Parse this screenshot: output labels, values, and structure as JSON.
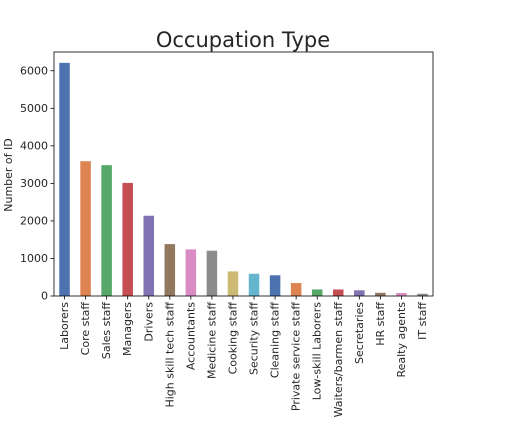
{
  "chart_data": {
    "type": "bar",
    "title": "Occupation Type",
    "xlabel": "",
    "ylabel": "Number of ID",
    "ylim": [
      0,
      6500
    ],
    "yticks": [
      0,
      1000,
      2000,
      3000,
      4000,
      5000,
      6000
    ],
    "grid": false,
    "legend": "none",
    "categories": [
      "Laborers",
      "Core staff",
      "Sales staff",
      "Managers",
      "Drivers",
      "High skill tech staff",
      "Accountants",
      "Medicine staff",
      "Cooking staff",
      "Security staff",
      "Cleaning staff",
      "Private service staff",
      "Low-skill Laborers",
      "Waiters/barmen staff",
      "Secretaries",
      "HR staff",
      "Realty agents",
      "IT staff"
    ],
    "values": [
      6211,
      3591,
      3485,
      3012,
      2138,
      1383,
      1241,
      1207,
      655,
      592,
      552,
      344,
      175,
      174,
      151,
      85,
      79,
      60
    ],
    "colors": [
      "#4c72b0",
      "#dd8452",
      "#55a868",
      "#c44e52",
      "#8172b3",
      "#937860",
      "#da8bc3",
      "#8c8c8c",
      "#ccb974",
      "#64b5cd",
      "#4c72b0",
      "#dd8452",
      "#55a868",
      "#c44e52",
      "#8172b3",
      "#937860",
      "#da8bc3",
      "#8c8c8c"
    ]
  }
}
